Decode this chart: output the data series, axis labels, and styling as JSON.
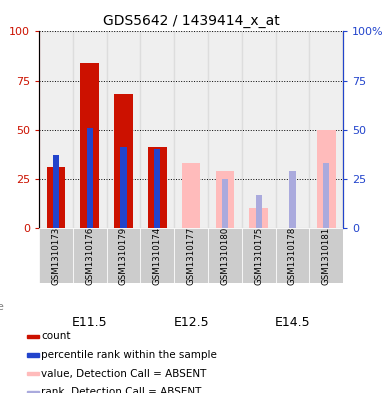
{
  "title": "GDS5642 / 1439414_x_at",
  "samples": [
    "GSM1310173",
    "GSM1310176",
    "GSM1310179",
    "GSM1310174",
    "GSM1310177",
    "GSM1310180",
    "GSM1310175",
    "GSM1310178",
    "GSM1310181"
  ],
  "age_groups": [
    {
      "label": "E11.5",
      "indices": [
        0,
        1,
        2
      ],
      "color": "#aaeebb"
    },
    {
      "label": "E12.5",
      "indices": [
        3,
        4,
        5
      ],
      "color": "#aaeebb"
    },
    {
      "label": "E14.5",
      "indices": [
        6,
        7,
        8
      ],
      "color": "#44cc66"
    }
  ],
  "count_values": [
    31,
    84,
    68,
    41,
    null,
    null,
    null,
    null,
    null
  ],
  "percentile_values": [
    37,
    51,
    41,
    40,
    null,
    null,
    null,
    null,
    null
  ],
  "absent_value_values": [
    null,
    null,
    null,
    null,
    33,
    29,
    10,
    null,
    50
  ],
  "absent_rank_values": [
    null,
    null,
    null,
    null,
    null,
    25,
    17,
    29,
    33
  ],
  "ylim": [
    0,
    100
  ],
  "yticks": [
    0,
    25,
    50,
    75,
    100
  ],
  "color_count": "#cc1100",
  "color_percentile": "#2244cc",
  "color_absent_value": "#ffbbbb",
  "color_absent_rank": "#aaaadd",
  "color_sample_bg": "#cccccc",
  "bar_width": 0.55,
  "percentile_bar_width": 0.18,
  "legend_items": [
    {
      "label": "count",
      "color": "#cc1100"
    },
    {
      "label": "percentile rank within the sample",
      "color": "#2244cc"
    },
    {
      "label": "value, Detection Call = ABSENT",
      "color": "#ffbbbb"
    },
    {
      "label": "rank, Detection Call = ABSENT",
      "color": "#aaaadd"
    }
  ]
}
